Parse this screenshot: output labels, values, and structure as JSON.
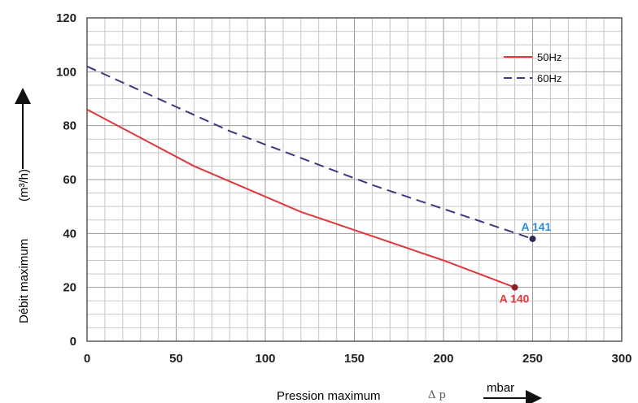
{
  "chart_data": {
    "type": "line",
    "xlabel": "Pression maximum",
    "xlabel_symbol": "Δ p",
    "xunit": "mbar",
    "ylabel": "Débit maximum",
    "yunit": "(m³/h)",
    "xlim": [
      0,
      300
    ],
    "ylim": [
      0,
      120
    ],
    "xticks": [
      0,
      50,
      100,
      150,
      200,
      250,
      300
    ],
    "yticks": [
      0,
      20,
      40,
      60,
      80,
      100,
      120
    ],
    "grid": true,
    "legend_position": "top-right",
    "series": [
      {
        "name": "50Hz",
        "color": "#e0383a",
        "style": "solid",
        "points": [
          [
            0,
            86
          ],
          [
            60,
            65
          ],
          [
            120,
            48
          ],
          [
            200,
            30
          ],
          [
            240,
            20
          ]
        ]
      },
      {
        "name": "60Hz",
        "color": "#3a3a80",
        "style": "dashed",
        "points": [
          [
            0,
            102
          ],
          [
            80,
            78
          ],
          [
            160,
            58
          ],
          [
            250,
            38
          ]
        ]
      }
    ],
    "annotations": [
      {
        "text": "A 140",
        "x": 240,
        "y": 20,
        "color": "#e0383a",
        "marker_color": "#8b1f22"
      },
      {
        "text": "A 141",
        "x": 250,
        "y": 38,
        "color": "#2a8fd6",
        "marker_color": "#2a2a55"
      }
    ]
  }
}
